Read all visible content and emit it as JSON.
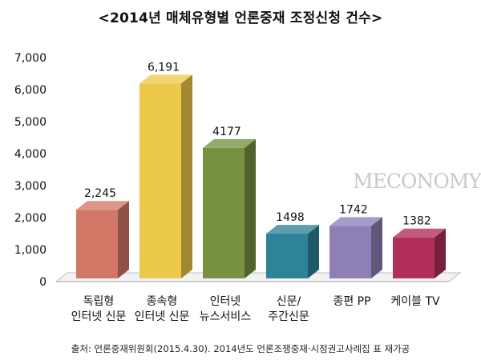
{
  "title": "<2014년 매체유형별 언론중재 조정신청 건수>",
  "watermark": "MECONOMY",
  "source": "출처: 언론중재위원회(2015.4.30). 2014년도 언론조쟁중재·시정권고사례집 표 재가공",
  "chart_data": {
    "type": "bar",
    "categories": [
      [
        "독립형",
        "인터넷 신문"
      ],
      [
        "종속형",
        "인터넷 신문"
      ],
      [
        "인터넷",
        "뉴스서비스"
      ],
      [
        "신문/",
        "주간신문"
      ],
      [
        "종편 PP"
      ],
      [
        "케이블 TV"
      ]
    ],
    "values": [
      2245,
      6191,
      4177,
      1498,
      1742,
      1382
    ],
    "value_labels": [
      "2,245",
      "6,191",
      "4177",
      "1498",
      "1742",
      "1382"
    ],
    "colors": [
      "#d27765",
      "#ecc94a",
      "#769240",
      "#2e8398",
      "#8e7fb7",
      "#b12d5b"
    ],
    "ylim": [
      0,
      7000
    ],
    "yticks": [
      "0",
      "1,000",
      "2,000",
      "3,000",
      "4,000",
      "5,000",
      "6,000",
      "7,000"
    ],
    "ytick_values": [
      0,
      1000,
      2000,
      3000,
      4000,
      5000,
      6000,
      7000
    ],
    "xlabel": "",
    "ylabel": "",
    "grid": false,
    "style": "3d"
  }
}
